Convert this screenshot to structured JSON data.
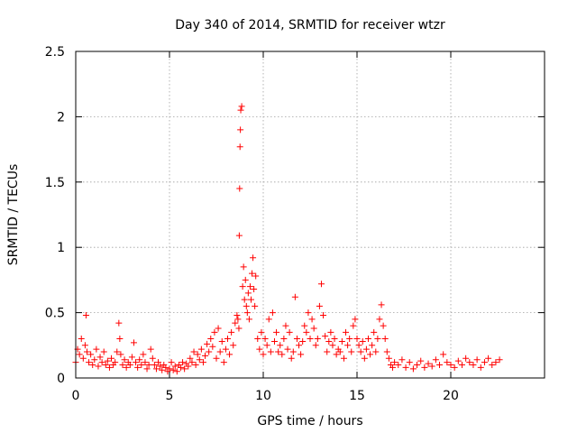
{
  "chart_data": {
    "type": "scatter",
    "title": "Day 340 of 2014, SRMTID for receiver wtzr",
    "xlabel": "GPS time / hours",
    "ylabel": "SRMTID / TECUs",
    "xlim": [
      0,
      25
    ],
    "ylim": [
      0,
      2.5
    ],
    "xticks": [
      0,
      5,
      10,
      15,
      20
    ],
    "yticks": [
      0,
      0.5,
      1,
      1.5,
      2,
      2.5
    ],
    "xtick_labels": [
      "0",
      "5",
      "10",
      "15",
      "20"
    ],
    "ytick_labels": [
      "0",
      "0.5",
      "1",
      "1.5",
      "2",
      "2.5"
    ],
    "grid": true,
    "marker": "+",
    "color": "#ff0000",
    "series": [
      {
        "name": "SRMTID",
        "x": [
          0.0,
          0.1,
          0.2,
          0.3,
          0.4,
          0.5,
          0.55,
          0.6,
          0.7,
          0.8,
          0.9,
          1.0,
          1.1,
          1.2,
          1.3,
          1.4,
          1.5,
          1.6,
          1.7,
          1.8,
          1.9,
          2.0,
          2.1,
          2.2,
          2.3,
          2.35,
          2.4,
          2.5,
          2.6,
          2.7,
          2.8,
          2.9,
          3.0,
          3.1,
          3.2,
          3.3,
          3.4,
          3.5,
          3.6,
          3.7,
          3.8,
          3.9,
          4.0,
          4.1,
          4.2,
          4.3,
          4.4,
          4.5,
          4.6,
          4.7,
          4.8,
          4.9,
          5.0,
          5.1,
          5.2,
          5.3,
          5.4,
          5.5,
          5.6,
          5.7,
          5.8,
          5.9,
          6.0,
          6.1,
          6.2,
          6.3,
          6.4,
          6.5,
          6.6,
          6.7,
          6.8,
          6.9,
          7.0,
          7.1,
          7.2,
          7.3,
          7.4,
          7.5,
          7.6,
          7.7,
          7.8,
          7.9,
          8.0,
          8.1,
          8.2,
          8.3,
          8.4,
          8.5,
          8.6,
          8.65,
          8.7,
          8.72,
          8.74,
          8.76,
          8.78,
          8.8,
          8.85,
          8.9,
          8.95,
          9.0,
          9.05,
          9.1,
          9.15,
          9.2,
          9.25,
          9.3,
          9.35,
          9.4,
          9.45,
          9.5,
          9.55,
          9.6,
          9.7,
          9.8,
          9.9,
          10.0,
          10.1,
          10.2,
          10.3,
          10.4,
          10.5,
          10.6,
          10.7,
          10.8,
          10.9,
          11.0,
          11.1,
          11.2,
          11.3,
          11.4,
          11.5,
          11.6,
          11.7,
          11.8,
          11.9,
          12.0,
          12.1,
          12.2,
          12.3,
          12.4,
          12.5,
          12.6,
          12.7,
          12.8,
          12.9,
          13.0,
          13.1,
          13.2,
          13.3,
          13.4,
          13.5,
          13.6,
          13.7,
          13.8,
          13.9,
          14.0,
          14.1,
          14.2,
          14.3,
          14.4,
          14.5,
          14.6,
          14.7,
          14.8,
          14.9,
          15.0,
          15.1,
          15.2,
          15.3,
          15.4,
          15.5,
          15.6,
          15.7,
          15.8,
          15.9,
          16.0,
          16.1,
          16.2,
          16.3,
          16.4,
          16.5,
          16.6,
          16.7,
          16.8,
          16.9,
          17.0,
          17.2,
          17.4,
          17.6,
          17.8,
          18.0,
          18.2,
          18.4,
          18.6,
          18.8,
          19.0,
          19.2,
          19.4,
          19.6,
          19.8,
          20.0,
          20.2,
          20.4,
          20.6,
          20.8,
          21.0,
          21.2,
          21.4,
          21.6,
          21.8,
          22.0,
          22.2,
          22.4,
          22.6
        ],
        "y": [
          0.12,
          0.22,
          0.18,
          0.3,
          0.15,
          0.25,
          0.48,
          0.2,
          0.12,
          0.18,
          0.1,
          0.14,
          0.22,
          0.09,
          0.16,
          0.12,
          0.2,
          0.1,
          0.13,
          0.08,
          0.15,
          0.1,
          0.12,
          0.2,
          0.42,
          0.3,
          0.18,
          0.1,
          0.14,
          0.08,
          0.12,
          0.1,
          0.16,
          0.27,
          0.12,
          0.08,
          0.14,
          0.1,
          0.18,
          0.12,
          0.07,
          0.1,
          0.22,
          0.15,
          0.1,
          0.07,
          0.12,
          0.09,
          0.06,
          0.1,
          0.08,
          0.05,
          0.07,
          0.12,
          0.06,
          0.09,
          0.05,
          0.1,
          0.08,
          0.12,
          0.07,
          0.11,
          0.09,
          0.15,
          0.12,
          0.2,
          0.1,
          0.18,
          0.14,
          0.22,
          0.12,
          0.17,
          0.26,
          0.2,
          0.3,
          0.24,
          0.35,
          0.15,
          0.38,
          0.2,
          0.28,
          0.12,
          0.22,
          0.3,
          0.18,
          0.35,
          0.25,
          0.42,
          0.48,
          0.45,
          0.38,
          1.09,
          1.45,
          1.77,
          1.9,
          2.05,
          2.08,
          0.7,
          0.85,
          0.6,
          0.75,
          0.55,
          0.5,
          0.65,
          0.45,
          0.7,
          0.6,
          0.8,
          0.92,
          0.68,
          0.55,
          0.78,
          0.3,
          0.22,
          0.35,
          0.18,
          0.3,
          0.25,
          0.45,
          0.2,
          0.5,
          0.28,
          0.35,
          0.2,
          0.25,
          0.18,
          0.3,
          0.4,
          0.22,
          0.35,
          0.15,
          0.2,
          0.62,
          0.3,
          0.25,
          0.18,
          0.28,
          0.4,
          0.35,
          0.5,
          0.3,
          0.45,
          0.38,
          0.25,
          0.3,
          0.55,
          0.72,
          0.48,
          0.32,
          0.2,
          0.28,
          0.35,
          0.25,
          0.3,
          0.18,
          0.22,
          0.2,
          0.28,
          0.15,
          0.35,
          0.25,
          0.3,
          0.2,
          0.4,
          0.45,
          0.3,
          0.25,
          0.2,
          0.28,
          0.15,
          0.22,
          0.3,
          0.18,
          0.25,
          0.35,
          0.2,
          0.3,
          0.45,
          0.56,
          0.4,
          0.3,
          0.2,
          0.15,
          0.1,
          0.08,
          0.12,
          0.1,
          0.14,
          0.08,
          0.12,
          0.07,
          0.1,
          0.13,
          0.08,
          0.11,
          0.09,
          0.14,
          0.1,
          0.18,
          0.12,
          0.1,
          0.08,
          0.13,
          0.1,
          0.15,
          0.12,
          0.1,
          0.14,
          0.08,
          0.12,
          0.15,
          0.1,
          0.12,
          0.14
        ]
      }
    ]
  }
}
